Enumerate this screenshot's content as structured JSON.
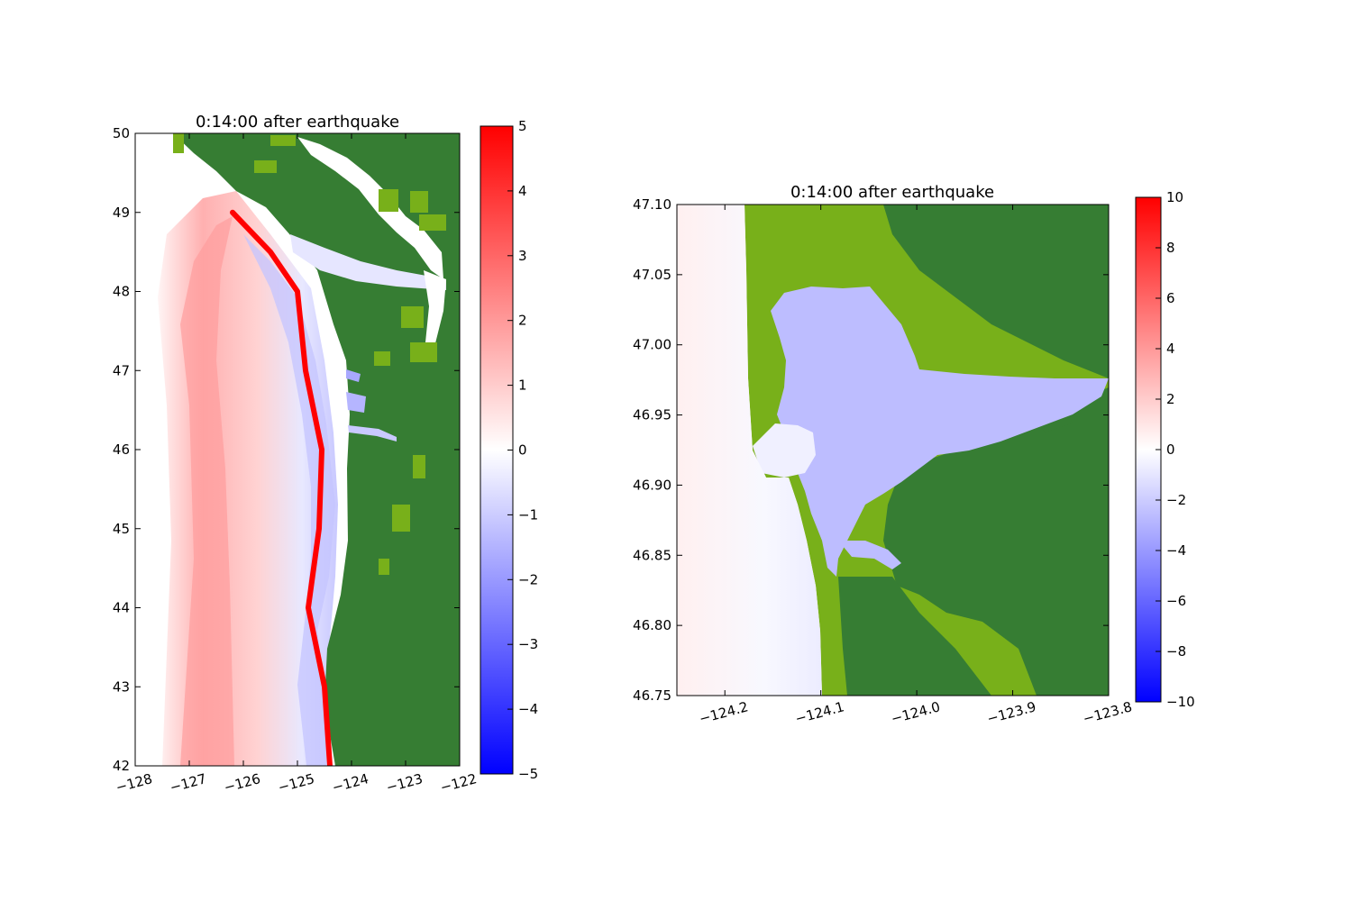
{
  "chart_data": [
    {
      "type": "heatmap",
      "title": "0:14:00 after earthquake",
      "xlim": [
        -128,
        -122
      ],
      "ylim": [
        42,
        50
      ],
      "xticks": [
        -128,
        -127,
        -126,
        -125,
        -124,
        -123,
        -122
      ],
      "yticks": [
        42,
        43,
        44,
        45,
        46,
        47,
        48,
        49,
        50
      ],
      "xtick_labels": [
        "−128",
        "−127",
        "−126",
        "−125",
        "−124",
        "−123",
        "−122"
      ],
      "ytick_labels": [
        "42",
        "43",
        "44",
        "45",
        "46",
        "47",
        "48",
        "49",
        "50"
      ],
      "colorbar": {
        "min": -5,
        "max": 5,
        "ticks": [
          5,
          4,
          3,
          2,
          1,
          0,
          -1,
          -2,
          -3,
          -4,
          -5
        ],
        "tick_labels": [
          "5",
          "4",
          "3",
          "2",
          "1",
          "0",
          "−1",
          "−2",
          "−3",
          "−4",
          "−5"
        ],
        "colormap": [
          "#0000ff",
          "#ffffff",
          "#ff0000"
        ]
      },
      "wave_front": [
        {
          "lon": -126.2,
          "lat": 49.0
        },
        {
          "lon": -125.5,
          "lat": 48.5
        },
        {
          "lon": -125.0,
          "lat": 48.0
        },
        {
          "lon": -124.85,
          "lat": 47.0
        },
        {
          "lon": -124.55,
          "lat": 46.0
        },
        {
          "lon": -124.6,
          "lat": 45.0
        },
        {
          "lon": -124.8,
          "lat": 44.0
        },
        {
          "lon": -124.5,
          "lat": 43.0
        },
        {
          "lon": -124.4,
          "lat": 42.0
        }
      ]
    },
    {
      "type": "heatmap",
      "title": "0:14:00 after earthquake",
      "xlim": [
        -124.25,
        -123.8
      ],
      "ylim": [
        46.75,
        47.1
      ],
      "xticks": [
        -124.2,
        -124.1,
        -124.0,
        -123.9,
        -123.8
      ],
      "yticks": [
        46.75,
        46.8,
        46.85,
        46.9,
        46.95,
        47.0,
        47.05,
        47.1
      ],
      "xtick_labels": [
        "−124.2",
        "−124.1",
        "−124.0",
        "−123.9",
        "−123.8"
      ],
      "ytick_labels": [
        "46.75",
        "46.80",
        "46.85",
        "46.90",
        "46.95",
        "47.00",
        "47.05",
        "47.10"
      ],
      "colorbar": {
        "min": -10,
        "max": 10,
        "ticks": [
          10,
          8,
          6,
          4,
          2,
          0,
          -2,
          -4,
          -6,
          -8,
          -10
        ],
        "tick_labels": [
          "10",
          "8",
          "6",
          "4",
          "2",
          "0",
          "−2",
          "−4",
          "−6",
          "−8",
          "−10"
        ],
        "colormap": [
          "#0000ff",
          "#ffffff",
          "#ff0000"
        ]
      }
    }
  ],
  "colors": {
    "land_dark": "#367d33",
    "land_light": "#78b01a",
    "ocean_positive": "#ff0000",
    "ocean_negative": "#0000ff"
  }
}
